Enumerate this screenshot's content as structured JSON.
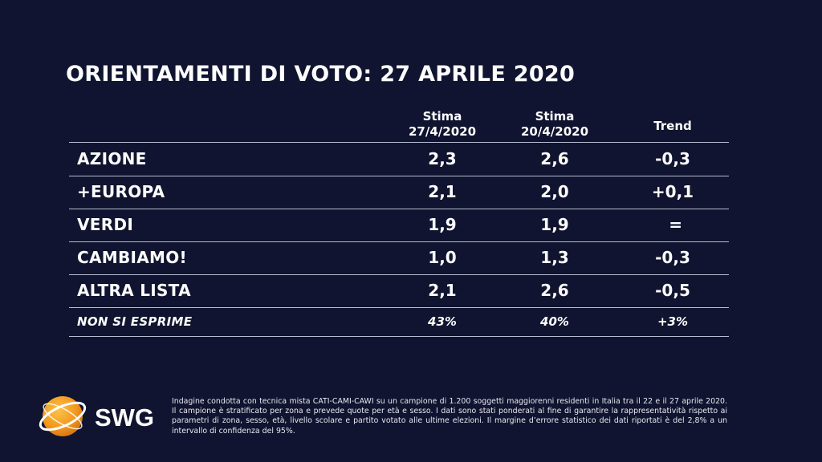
{
  "title": "ORIENTAMENTI DI VOTO: 27 APRILE 2020",
  "columns": {
    "c1_line1": "Stima",
    "c1_line2": "27/4/2020",
    "c2_line1": "Stima",
    "c2_line2": "20/4/2020",
    "c3": "Trend"
  },
  "chart_data": {
    "type": "table",
    "title": "ORIENTAMENTI DI VOTO: 27 APRILE 2020",
    "headers": [
      "",
      "Stima 27/4/2020",
      "Stima 20/4/2020",
      "Trend"
    ],
    "rows": [
      {
        "party": "AZIONE",
        "v1": "2,3",
        "v2": "2,6",
        "trend": "-0,3"
      },
      {
        "party": "+EUROPA",
        "v1": "2,1",
        "v2": "2,0",
        "trend": "+0,1"
      },
      {
        "party": "VERDI",
        "v1": "1,9",
        "v2": "1,9",
        "trend": "="
      },
      {
        "party": "CAMBIAMO!",
        "v1": "1,0",
        "v2": "1,3",
        "trend": "-0,3"
      },
      {
        "party": "ALTRA LISTA",
        "v1": "2,1",
        "v2": "2,6",
        "trend": "-0,5"
      },
      {
        "party": "NON SI ESPRIME",
        "v1": "43%",
        "v2": "40%",
        "trend": "+3%"
      }
    ]
  },
  "logo": {
    "text": "SWG",
    "colors": {
      "orange": "#f39a1e",
      "white": "#ffffff"
    }
  },
  "footnote": "Indagine condotta con tecnica mista CATI-CAMI-CAWI su un campione di 1.200 soggetti maggiorenni residenti in Italia tra il 22 e il 27 aprile 2020. Il campione è stratificato per zona e prevede quote per età e sesso. I dati sono stati ponderati al fine di garantire la rappresentatività rispetto ai parametri di zona, sesso, età, livello scolare e partito votato alle ultime elezioni. Il margine d’errore statistico dei dati riportati è del 2,8% a un intervallo di confidenza del 95%.",
  "colors": {
    "background": "#101430",
    "rule": "#b8bccc"
  }
}
